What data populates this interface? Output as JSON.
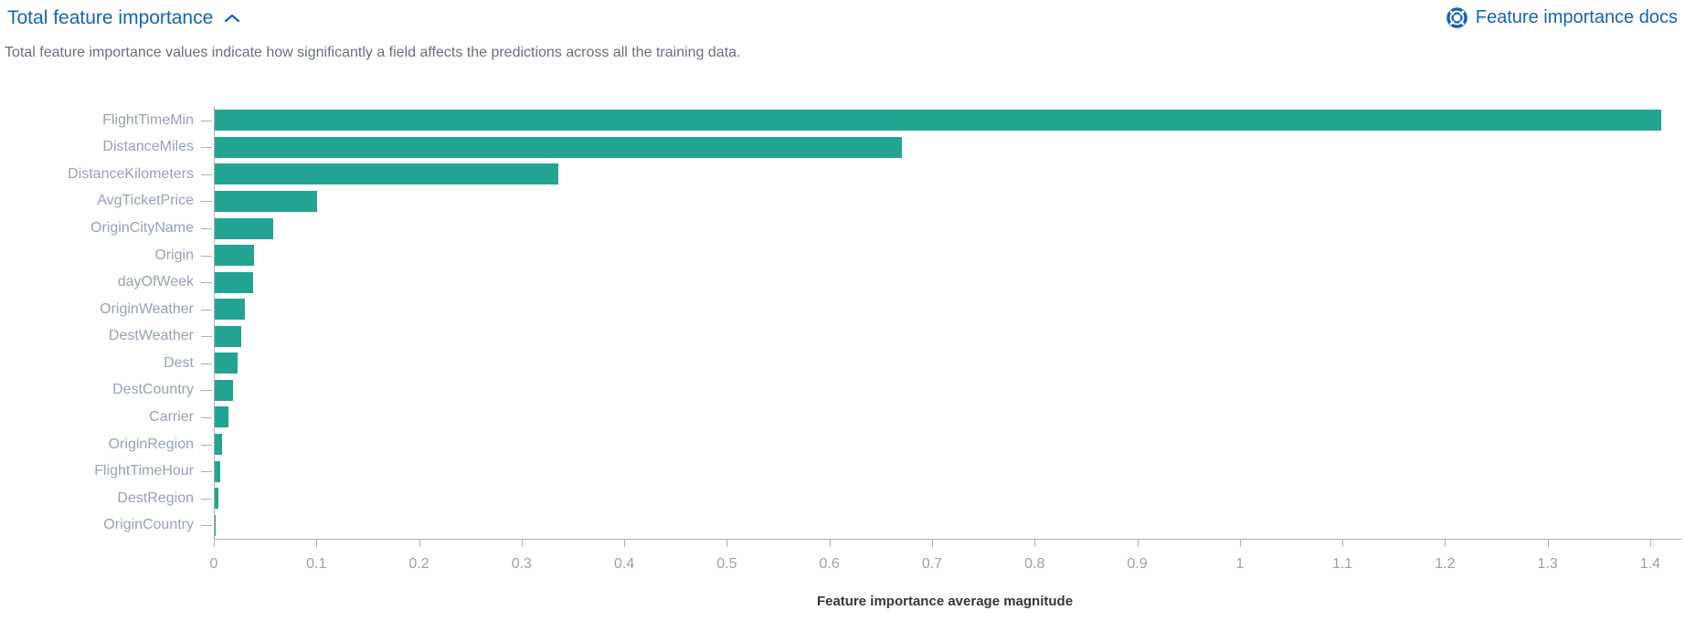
{
  "header": {
    "title": "Total feature importance",
    "collapse_icon": "chevron-up-icon",
    "docs_link": {
      "label": "Feature importance docs",
      "icon": "lifebuoy-icon"
    }
  },
  "subtitle": "Total feature importance values indicate how significantly a field affects the predictions across all the training data.",
  "colors": {
    "bar": "#23A493",
    "link": "#1365B4",
    "axis_label": "#98A2B3",
    "axis_line": "#A9B2BB",
    "subtitle_text": "#69707D",
    "axis_title": "#343741"
  },
  "chart_data": {
    "type": "bar",
    "orientation": "horizontal",
    "title": "",
    "xlabel": "Feature importance average magnitude",
    "ylabel": "",
    "xlim": [
      0,
      1.425
    ],
    "grid": false,
    "legend": false,
    "bar_color": "#23A493",
    "x_ticks": [
      0,
      0.1,
      0.2,
      0.3,
      0.4,
      0.5,
      0.6,
      0.7,
      0.8,
      0.9,
      1,
      1.1,
      1.2,
      1.3,
      1.4
    ],
    "x_tick_labels": [
      "0",
      "0.1",
      "0.2",
      "0.3",
      "0.4",
      "0.5",
      "0.6",
      "0.7",
      "0.8",
      "0.9",
      "1",
      "1.1",
      "1.2",
      "1.3",
      "1.4"
    ],
    "categories": [
      "FlightTimeMin",
      "DistanceMiles",
      "DistanceKilometers",
      "AvgTicketPrice",
      "OriginCityName",
      "Origin",
      "dayOfWeek",
      "OriginWeather",
      "DestWeather",
      "Dest",
      "DestCountry",
      "Carrier",
      "OriginRegion",
      "FlightTimeHour",
      "DestRegion",
      "OriginCountry"
    ],
    "values": [
      1.41,
      0.67,
      0.335,
      0.1,
      0.057,
      0.038,
      0.037,
      0.029,
      0.026,
      0.022,
      0.018,
      0.013,
      0.007,
      0.005,
      0.004,
      0.001
    ]
  }
}
